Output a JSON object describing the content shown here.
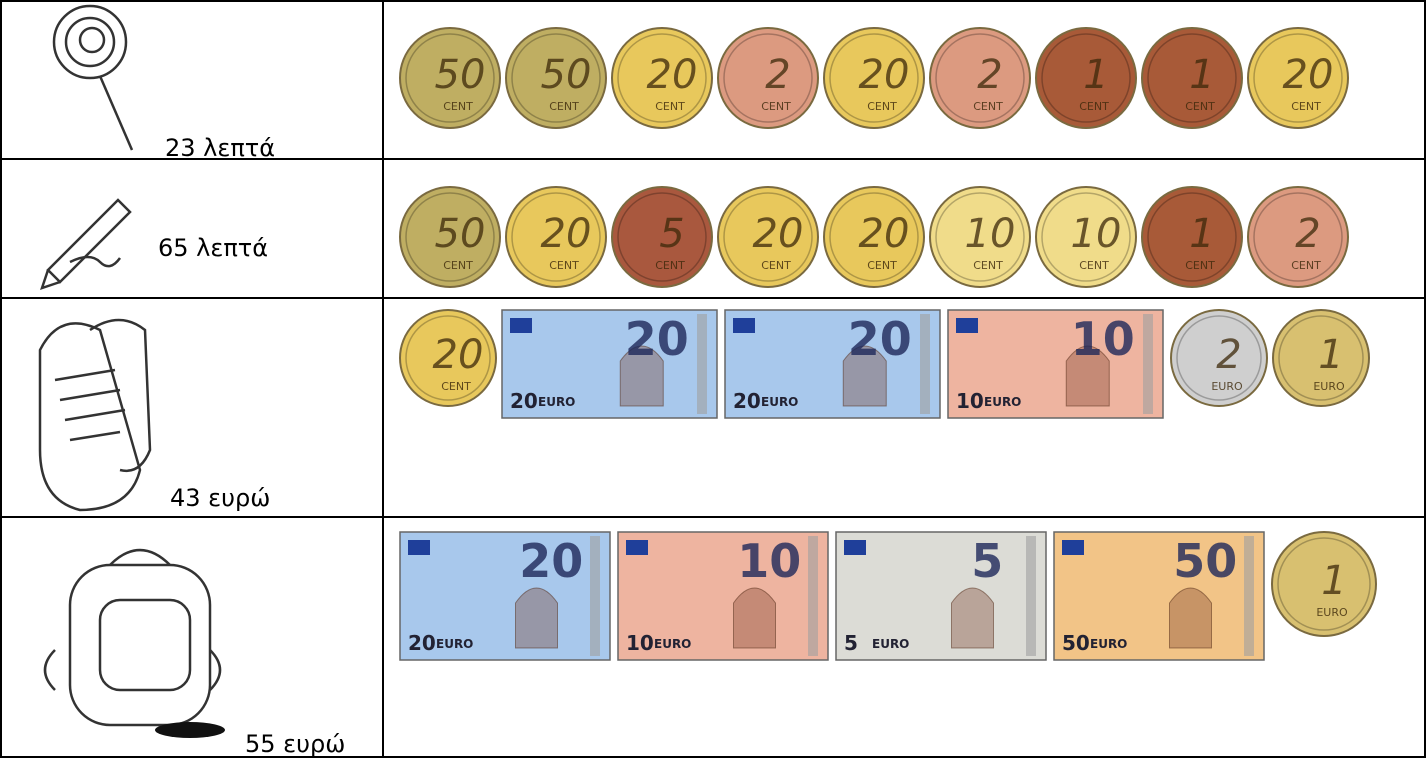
{
  "rows": [
    {
      "price": "23 λεπτά",
      "money": [
        {
          "type": "coin",
          "value": "50",
          "unit": "CENT",
          "color": "#bfae62"
        },
        {
          "type": "coin",
          "value": "50",
          "unit": "CENT",
          "color": "#bfae62"
        },
        {
          "type": "coin",
          "value": "20",
          "unit": "CENT",
          "color": "#e8c85c"
        },
        {
          "type": "coin",
          "value": "2",
          "unit": "CENT",
          "color": "#dc9a80"
        },
        {
          "type": "coin",
          "value": "20",
          "unit": "CENT",
          "color": "#e8c85c"
        },
        {
          "type": "coin",
          "value": "2",
          "unit": "CENT",
          "color": "#dc9a80"
        },
        {
          "type": "coin",
          "value": "1",
          "unit": "CENT",
          "color": "#a85a38"
        },
        {
          "type": "coin",
          "value": "1",
          "unit": "CENT",
          "color": "#a85a38"
        },
        {
          "type": "coin",
          "value": "20",
          "unit": "CENT",
          "color": "#e8c85c"
        }
      ]
    },
    {
      "price": "65 λεπτά",
      "money": [
        {
          "type": "coin",
          "value": "50",
          "unit": "CENT",
          "color": "#bfae62"
        },
        {
          "type": "coin",
          "value": "20",
          "unit": "CENT",
          "color": "#e8c85c"
        },
        {
          "type": "coin",
          "value": "5",
          "unit": "CENT",
          "color": "#a9583e"
        },
        {
          "type": "coin",
          "value": "20",
          "unit": "CENT",
          "color": "#e8c85c"
        },
        {
          "type": "coin",
          "value": "20",
          "unit": "CENT",
          "color": "#e8c85c"
        },
        {
          "type": "coin",
          "value": "10",
          "unit": "CENT",
          "color": "#f0dc8a"
        },
        {
          "type": "coin",
          "value": "10",
          "unit": "CENT",
          "color": "#f0dc8a"
        },
        {
          "type": "coin",
          "value": "1",
          "unit": "CENT",
          "color": "#a85a38"
        },
        {
          "type": "coin",
          "value": "2",
          "unit": "CENT",
          "color": "#dc9a80"
        }
      ]
    },
    {
      "price": "43 ευρώ",
      "money": [
        {
          "type": "coin",
          "value": "20",
          "unit": "CENT",
          "color": "#e8c85c"
        },
        {
          "type": "note",
          "value": "20",
          "unit": "EURO",
          "color": "#a8c8ec"
        },
        {
          "type": "note",
          "value": "20",
          "unit": "EURO",
          "color": "#a8c8ec"
        },
        {
          "type": "note",
          "value": "10",
          "unit": "EURO",
          "color": "#eeb4a0"
        },
        {
          "type": "coin",
          "value": "2",
          "unit": "EURO",
          "color": "#cfcfcf"
        },
        {
          "type": "coin",
          "value": "1",
          "unit": "EURO",
          "color": "#d8c070"
        }
      ]
    },
    {
      "price": "55 ευρώ",
      "money": [
        {
          "type": "note",
          "value": "20",
          "unit": "EURO",
          "color": "#a8c8ec"
        },
        {
          "type": "note",
          "value": "10",
          "unit": "EURO",
          "color": "#eeb4a0"
        },
        {
          "type": "note",
          "value": "5",
          "unit": "EURO",
          "color": "#dcdcd6"
        },
        {
          "type": "note",
          "value": "50",
          "unit": "EURO",
          "color": "#f2c487"
        },
        {
          "type": "coin",
          "value": "1",
          "unit": "EURO",
          "color": "#d8c070"
        }
      ]
    }
  ]
}
